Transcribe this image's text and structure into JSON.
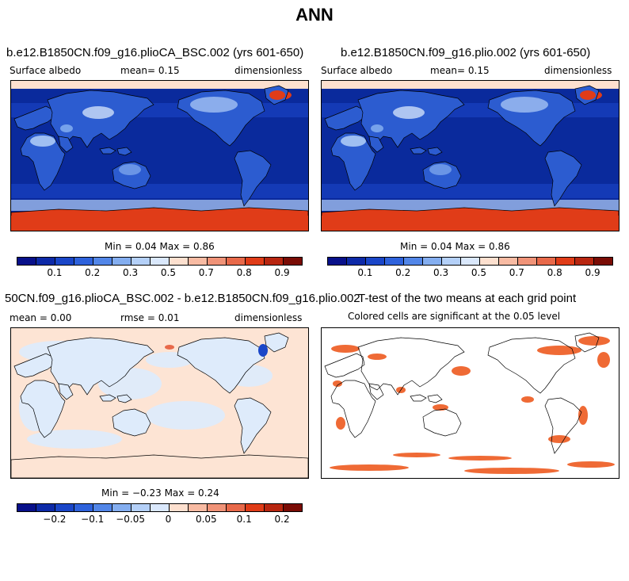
{
  "title": "ANN",
  "panels": [
    {
      "title": "b.e12.B1850CN.f09_g16.plioCA_BSC.002 (yrs 601-650)",
      "sub_left": "Surface albedo",
      "sub_mid": "mean=   0.15",
      "sub_right": "dimensionless",
      "minmax": "Min =   0.04 Max =   0.86",
      "ticks": [
        "0.1",
        "0.2",
        "0.3",
        "0.5",
        "0.7",
        "0.8",
        "0.9"
      ]
    },
    {
      "title": "b.e12.B1850CN.f09_g16.plio.002 (yrs 601-650)",
      "sub_left": "Surface albedo",
      "sub_mid": "mean=   0.15",
      "sub_right": "dimensionless",
      "minmax": "Min =   0.04 Max =   0.86",
      "ticks": [
        "0.1",
        "0.2",
        "0.3",
        "0.5",
        "0.7",
        "0.8",
        "0.9"
      ]
    },
    {
      "title": "50CN.f09_g16.plioCA_BSC.002 - b.e12.B1850CN.f09_g16.plio.002",
      "sub_left": "mean =   0.00",
      "sub_mid": "rmse =   0.01",
      "sub_right": "dimensionless",
      "minmax": "Min =  −0.23 Max =   0.24",
      "ticks": [
        "−0.2",
        "−0.1",
        "−0.05",
        "0",
        "0.05",
        "0.1",
        "0.2"
      ]
    },
    {
      "title": "T-test of the two means at each grid point",
      "subtitle": "Colored cells are significant at the 0.05 level"
    }
  ],
  "colors": {
    "scale": [
      "#08108a",
      "#0d2aa8",
      "#1a46c8",
      "#2e62dc",
      "#5286e8",
      "#84aef0",
      "#b4d0f8",
      "#dae8fc",
      "#fde0cf",
      "#f8bba3",
      "#f09378",
      "#e8694a",
      "#e03c18",
      "#b82610",
      "#7a0c05"
    ],
    "ocean": "#0a2a9c",
    "sea_ice": "#f5b9a0",
    "land": "#2c5cd0",
    "diff_ocean": "#fde4d4",
    "diff_land": "#deebfb",
    "ttest": "#ef6a35"
  }
}
